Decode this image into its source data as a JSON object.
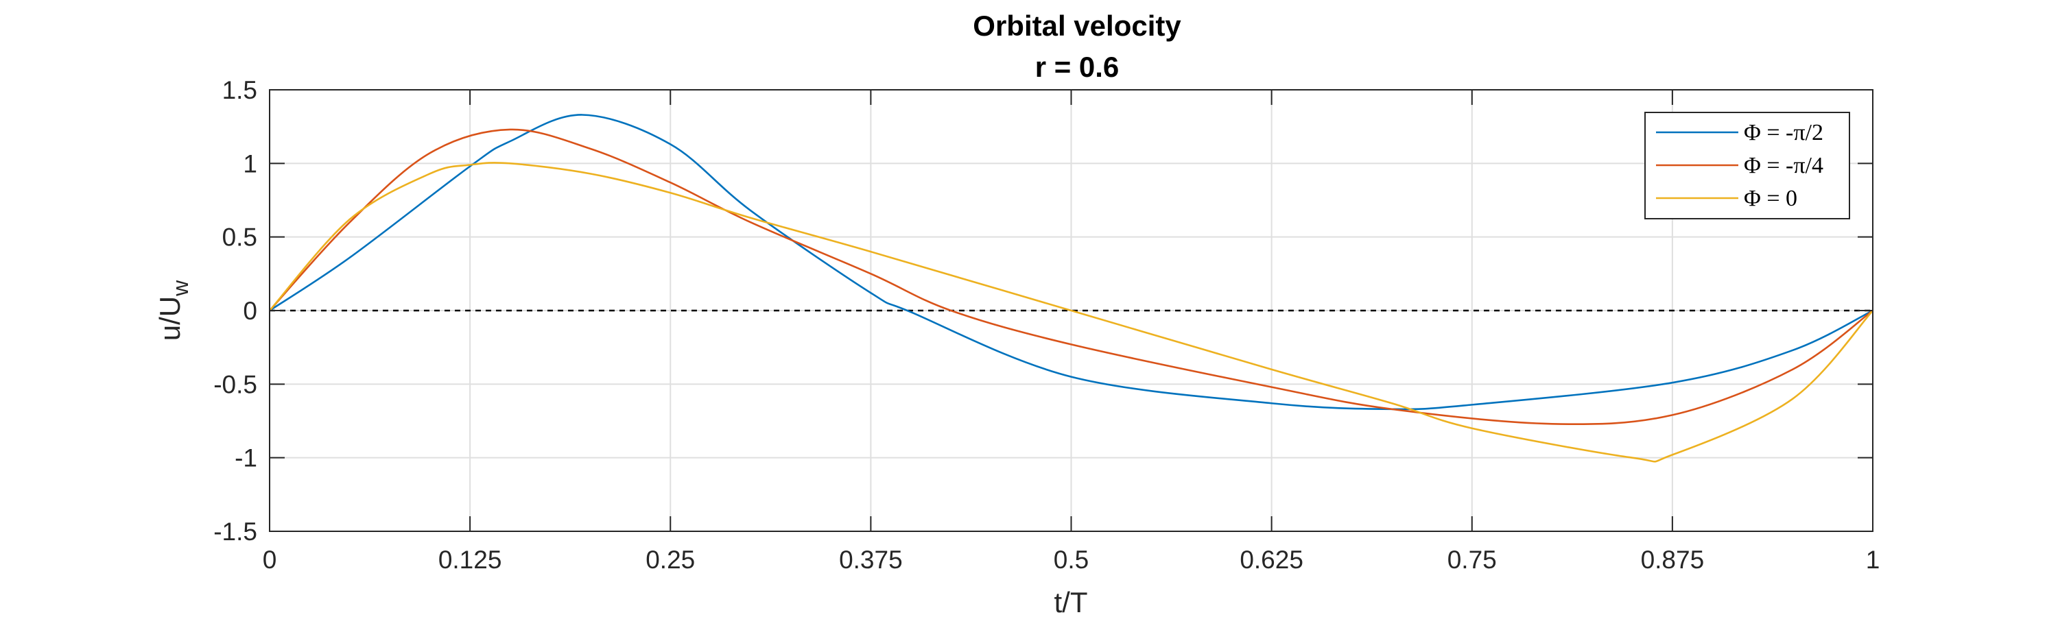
{
  "chart_data": {
    "type": "line",
    "title": "Orbital velocity",
    "subtitle": "r = 0.6",
    "xlabel": "t/T",
    "ylabel_main": "u/U",
    "ylabel_sub": "w",
    "xlim": [
      0,
      1
    ],
    "ylim": [
      -1.5,
      1.5
    ],
    "xticks": [
      0,
      0.125,
      0.25,
      0.375,
      0.5,
      0.625,
      0.75,
      0.875,
      1
    ],
    "xtick_labels": [
      "0",
      "0.125",
      "0.25",
      "0.375",
      "0.5",
      "0.625",
      "0.75",
      "0.875",
      "1"
    ],
    "yticks": [
      1.5,
      1,
      0.5,
      0,
      -0.5,
      -1,
      -1.5
    ],
    "ytick_labels": [
      "1.5",
      "1",
      "0.5",
      "0",
      "-0.5",
      "-1",
      "-1.5"
    ],
    "grid": true,
    "legend_position": "top-right",
    "reference_line": {
      "y": 0,
      "style": "dashed",
      "color": "#000000"
    },
    "series": [
      {
        "name": "Φ = -π/2",
        "color": "#0072BD",
        "points": [
          [
            0,
            0
          ],
          [
            0.05,
            0.36
          ],
          [
            0.125,
            0.98
          ],
          [
            0.15,
            1.15
          ],
          [
            0.195,
            1.33
          ],
          [
            0.25,
            1.13
          ],
          [
            0.3,
            0.68
          ],
          [
            0.375,
            0.12
          ],
          [
            0.4,
            -0.01
          ],
          [
            0.5,
            -0.45
          ],
          [
            0.625,
            -0.63
          ],
          [
            0.7,
            -0.67
          ],
          [
            0.75,
            -0.64
          ],
          [
            0.875,
            -0.49
          ],
          [
            0.95,
            -0.27
          ],
          [
            1,
            0
          ]
        ]
      },
      {
        "name": "Φ = -π/4",
        "color": "#D95319",
        "points": [
          [
            0,
            0
          ],
          [
            0.05,
            0.6
          ],
          [
            0.1,
            1.07
          ],
          [
            0.15,
            1.23
          ],
          [
            0.2,
            1.1
          ],
          [
            0.25,
            0.87
          ],
          [
            0.3,
            0.6
          ],
          [
            0.375,
            0.25
          ],
          [
            0.425,
            0.0
          ],
          [
            0.5,
            -0.23
          ],
          [
            0.625,
            -0.52
          ],
          [
            0.7,
            -0.67
          ],
          [
            0.8,
            -0.77
          ],
          [
            0.875,
            -0.71
          ],
          [
            0.95,
            -0.4
          ],
          [
            1,
            0
          ]
        ]
      },
      {
        "name": "Φ = 0",
        "color": "#EDB120",
        "points": [
          [
            0,
            0
          ],
          [
            0.05,
            0.62
          ],
          [
            0.1,
            0.93
          ],
          [
            0.125,
            0.99
          ],
          [
            0.15,
            1.0
          ],
          [
            0.2,
            0.93
          ],
          [
            0.25,
            0.8
          ],
          [
            0.3,
            0.63
          ],
          [
            0.375,
            0.4
          ],
          [
            0.5,
            0.0
          ],
          [
            0.625,
            -0.4
          ],
          [
            0.7,
            -0.63
          ],
          [
            0.75,
            -0.8
          ],
          [
            0.85,
            -1.0
          ],
          [
            0.875,
            -0.98
          ],
          [
            0.95,
            -0.6
          ],
          [
            1,
            0
          ]
        ]
      }
    ]
  }
}
